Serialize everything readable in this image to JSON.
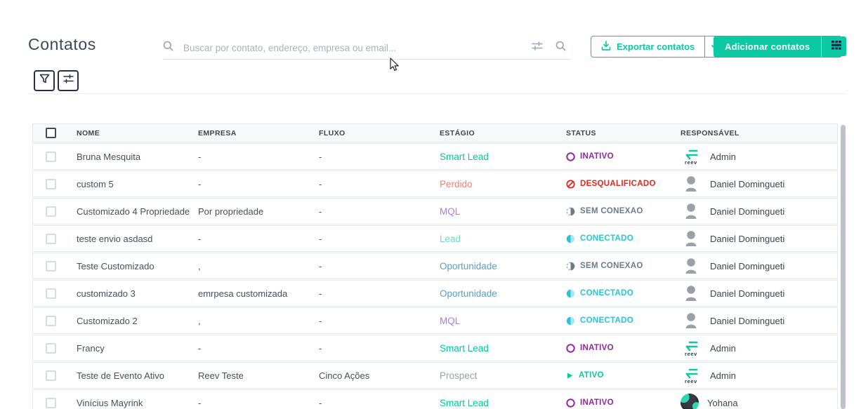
{
  "header": {
    "title": "Contatos",
    "search_placeholder": "Buscar por contato, endereço, empresa ou email...",
    "export_button": "Exportar contatos",
    "add_button": "Adicionar contatos"
  },
  "colors": {
    "accent_teal": "#0bc9a2",
    "navy": "#22384f",
    "header_text": "#3c4550",
    "body_text": "#46505c",
    "muted_icon": "#9aa4b0",
    "header_bg": "#f7f8fa",
    "row_border": "#e7ebee",
    "scrollbar": "#bcc2cc"
  },
  "table": {
    "columns": [
      "NOME",
      "EMPRESA",
      "FLUXO",
      "ESTÁGIO",
      "STATUS",
      "RESPONSÁVEL"
    ],
    "stage_colors": {
      "Smart Lead": "#00c9a0",
      "Perdido": "#ec8373",
      "MQL": "#b678dd",
      "Lead": "#72d8c4",
      "Oportunidade": "#5b9fc4",
      "Prospect": "#98a2ac"
    },
    "status_colors": {
      "inativo": "#93279f",
      "desqualificado": "#e0281e",
      "sem-conexao": "#6d7a8a",
      "conectado": "#26c6da",
      "ativo": "#0bc9a2"
    },
    "rows": [
      {
        "nome": "Bruna Mesquita",
        "empresa": "-",
        "fluxo": "-",
        "estagio": "Smart Lead",
        "status": "INATIVO",
        "status_type": "inativo",
        "responsavel": "Admin",
        "avatar": "reev-logo"
      },
      {
        "nome": "custom 5",
        "empresa": "-",
        "fluxo": "-",
        "estagio": "Perdido",
        "status": "DESQUALIFICADO",
        "status_type": "desqualificado",
        "responsavel": "Daniel Domingueti",
        "avatar": "person"
      },
      {
        "nome": "Customizado 4 Propriedade",
        "empresa": "Por propriedade",
        "fluxo": "-",
        "estagio": "MQL",
        "status": "SEM CONEXÃO",
        "status_type": "sem-conexao",
        "responsavel": "Daniel Domingueti",
        "avatar": "person"
      },
      {
        "nome": "teste envio asdasd",
        "empresa": "-",
        "fluxo": "-",
        "estagio": "Lead",
        "status": "CONECTADO",
        "status_type": "conectado",
        "responsavel": "Daniel Domingueti",
        "avatar": "person"
      },
      {
        "nome": "Teste Customizado",
        "empresa": ",",
        "fluxo": "-",
        "estagio": "Oportunidade",
        "status": "SEM CONEXÃO",
        "status_type": "sem-conexao",
        "responsavel": "Daniel Domingueti",
        "avatar": "person"
      },
      {
        "nome": "customizado 3",
        "empresa": "emrpesa customizada",
        "fluxo": "-",
        "estagio": "Oportunidade",
        "status": "CONECTADO",
        "status_type": "conectado",
        "responsavel": "Daniel Domingueti",
        "avatar": "person"
      },
      {
        "nome": "Customizado 2",
        "empresa": ",",
        "fluxo": "-",
        "estagio": "MQL",
        "status": "CONECTADO",
        "status_type": "conectado",
        "responsavel": "Daniel Domingueti",
        "avatar": "person"
      },
      {
        "nome": "Francy",
        "empresa": "-",
        "fluxo": "-",
        "estagio": "Smart Lead",
        "status": "INATIVO",
        "status_type": "inativo",
        "responsavel": "Admin",
        "avatar": "reev-logo"
      },
      {
        "nome": "Teste de Evento Ativo",
        "empresa": "Reev Teste",
        "fluxo": "Cinco Ações",
        "estagio": "Prospect",
        "status": "ATIVO",
        "status_type": "ativo",
        "responsavel": "Admin",
        "avatar": "reev-logo"
      },
      {
        "nome": "Vinícius Mayrink",
        "empresa": "-",
        "fluxo": "-",
        "estagio": "Smart Lead",
        "status": "INATIVO",
        "status_type": "inativo",
        "responsavel": "Yohana",
        "avatar": "photo"
      }
    ]
  }
}
